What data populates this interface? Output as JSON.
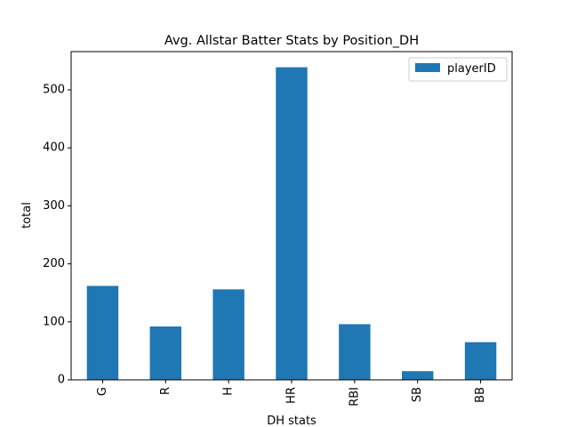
{
  "chart_data": {
    "type": "bar",
    "title": "Avg. Allstar Batter Stats by Position_DH",
    "xlabel": "DH stats",
    "ylabel": "total",
    "categories": [
      "G",
      "R",
      "H",
      "HR",
      "RBI",
      "SB",
      "BB"
    ],
    "series": [
      {
        "name": "playerID",
        "values": [
          162,
          92,
          156,
          539,
          96,
          15,
          65
        ]
      }
    ],
    "ylim": [
      0,
      566
    ],
    "yticks": [
      0,
      100,
      200,
      300,
      400,
      500
    ],
    "grid": false,
    "legend": "top-right",
    "colors": {
      "bar": "#1f77b4"
    }
  }
}
